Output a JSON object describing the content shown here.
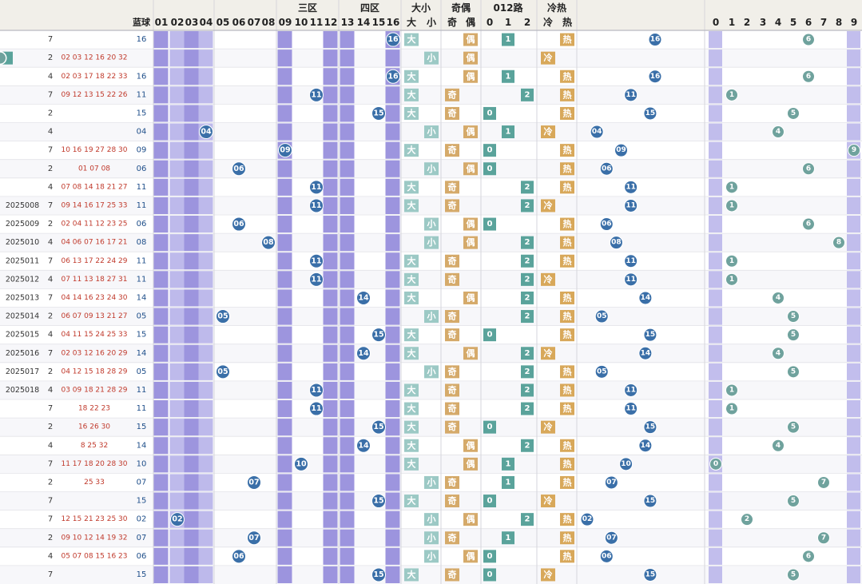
{
  "chart_data": {
    "type": "table",
    "header": {
      "row1_groups": [
        {
          "label": "三区",
          "from": "09",
          "to": "12"
        },
        {
          "label": "四区",
          "from": "13",
          "to": "16"
        },
        {
          "label": "大小"
        },
        {
          "label": "奇偶"
        },
        {
          "label": "012路"
        },
        {
          "label": "冷热"
        }
      ],
      "pre_label": "蓝球",
      "blue_labels": [
        "01",
        "02",
        "03",
        "04",
        "05",
        "06",
        "07",
        "08",
        "09",
        "10",
        "11",
        "12",
        "13",
        "14",
        "15",
        "16"
      ],
      "ds_labels": [
        "大",
        "小"
      ],
      "oe_labels": [
        "奇",
        "偶"
      ],
      "road_labels": [
        "0",
        "1",
        "2"
      ],
      "hc_labels": [
        "冷",
        "热"
      ],
      "tail_labels": [
        "0",
        "1",
        "2",
        "3",
        "4",
        "5",
        "6",
        "7",
        "8",
        "9"
      ]
    },
    "colors": {
      "purple": "#8c83d8",
      "purple_light": "#b3aee8",
      "blue_line": "#3a6fa8",
      "teal_line": "#6fa29d",
      "teal": "#9cc9c5",
      "tan": "#d5aa6a",
      "green": "#5aa39b",
      "hot": "#d8a85a"
    },
    "rows": [
      {
        "issue": "",
        "v": "7",
        "reds": "",
        "blue": "16",
        "tail": "6"
      },
      {
        "issue": "",
        "v": "2",
        "reds": "02 03 12 16 20 32",
        "blue": "",
        "tail": ""
      },
      {
        "issue": "",
        "v": "4",
        "reds": "02 03 17 18 22 33",
        "blue": "16",
        "tail": "6"
      },
      {
        "issue": "",
        "v": "7",
        "reds": "09 12 13 15 22 26",
        "blue": "11",
        "tail": "1"
      },
      {
        "issue": "",
        "v": "2",
        "reds": "",
        "blue": "15",
        "tail": "5"
      },
      {
        "issue": "",
        "v": "4",
        "reds": "",
        "blue": "04",
        "tail": "4"
      },
      {
        "issue": "",
        "v": "7",
        "reds": "10 16 19 27 28 30",
        "blue": "09",
        "tail": "9"
      },
      {
        "issue": "",
        "v": "2",
        "reds": "01 07 08",
        "blue": "06",
        "tail": "6"
      },
      {
        "issue": "",
        "v": "4",
        "reds": "07 08 14 18 21 27",
        "blue": "11",
        "tail": "1"
      },
      {
        "issue": "2025008",
        "v": "7",
        "reds": "09 14 16 17 25 33",
        "blue": "11",
        "tail": "1"
      },
      {
        "issue": "2025009",
        "v": "2",
        "reds": "02 04 11 12 23 25",
        "blue": "06",
        "tail": "6"
      },
      {
        "issue": "2025010",
        "v": "4",
        "reds": "04 06 07 16 17 21",
        "blue": "08",
        "tail": "8"
      },
      {
        "issue": "2025011",
        "v": "7",
        "reds": "06 13 17 22 24 29",
        "blue": "11",
        "tail": "1"
      },
      {
        "issue": "2025012",
        "v": "4",
        "reds": "07 11 13 18 27 31",
        "blue": "11",
        "tail": "1"
      },
      {
        "issue": "2025013",
        "v": "7",
        "reds": "04 14 16 23 24 30",
        "blue": "14",
        "tail": "4"
      },
      {
        "issue": "2025014",
        "v": "2",
        "reds": "06 07 09 13 21 27",
        "blue": "05",
        "tail": "5"
      },
      {
        "issue": "2025015",
        "v": "4",
        "reds": "04 11 15 24 25 33",
        "blue": "15",
        "tail": "5"
      },
      {
        "issue": "2025016",
        "v": "7",
        "reds": "02 03 12 16 20 29",
        "blue": "14",
        "tail": "4"
      },
      {
        "issue": "2025017",
        "v": "2",
        "reds": "04 12 15 18 28 29",
        "blue": "05",
        "tail": "5"
      },
      {
        "issue": "2025018",
        "v": "4",
        "reds": "03 09 18 21 28 29",
        "blue": "11",
        "tail": "1"
      },
      {
        "issue": "",
        "v": "7",
        "reds": "18 22 23",
        "blue": "11",
        "tail": "1"
      },
      {
        "issue": "",
        "v": "2",
        "reds": "16 26 30",
        "blue": "15",
        "tail": "5"
      },
      {
        "issue": "",
        "v": "4",
        "reds": "8 25 32",
        "blue": "14",
        "tail": "4"
      },
      {
        "issue": "",
        "v": "7",
        "reds": "11 17 18 20 28 30",
        "blue": "10",
        "tail": "0"
      },
      {
        "issue": "",
        "v": "2",
        "reds": "25 33",
        "blue": "07",
        "tail": "7"
      },
      {
        "issue": "",
        "v": "7",
        "reds": "",
        "blue": "15",
        "tail": "5"
      },
      {
        "issue": "",
        "v": "7",
        "reds": "12 15 21 23 25 30",
        "blue": "02",
        "tail": "2"
      },
      {
        "issue": "",
        "v": "2",
        "reds": "09 10 12 14 19 32",
        "blue": "07",
        "tail": "7"
      },
      {
        "issue": "",
        "v": "4",
        "reds": "05 07 08 15 16 23",
        "blue": "06",
        "tail": "6"
      },
      {
        "issue": "",
        "v": "7",
        "reds": "",
        "blue": "15",
        "tail": "5"
      }
    ]
  }
}
